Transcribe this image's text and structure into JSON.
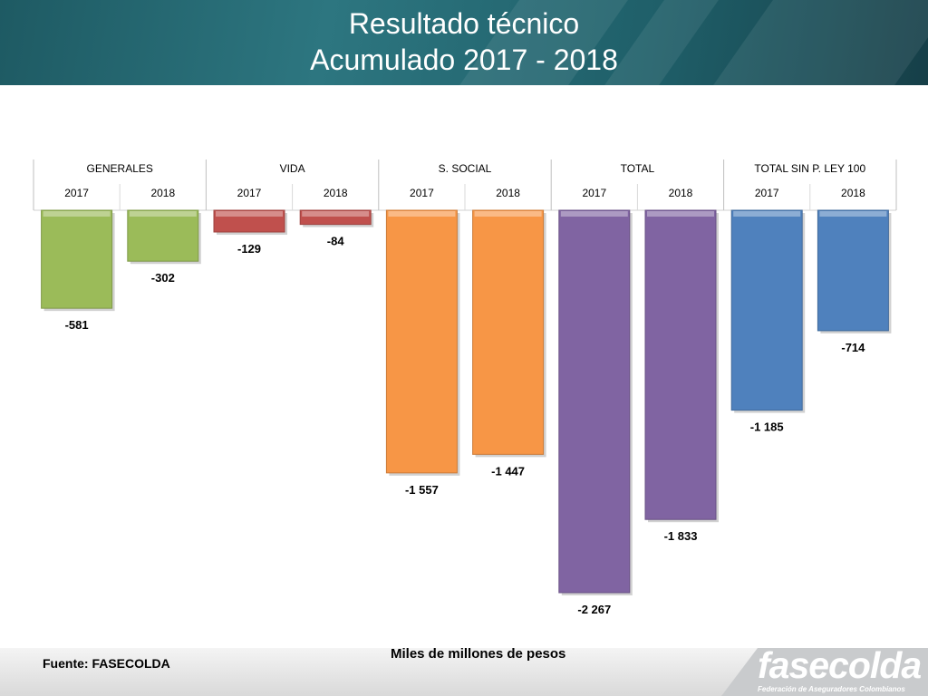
{
  "slide": {
    "title_line1": "Resultado técnico",
    "title_line2": "Acumulado  2017 - 2018",
    "source": "Fuente: FASECOLDA",
    "units": "Miles de millones de pesos",
    "logo_text": "fasecolda",
    "logo_subtitle": "Federación de Aseguradores Colombianos"
  },
  "chart_data": {
    "type": "bar",
    "title": "",
    "xlabel": "",
    "ylabel": "Miles de millones de pesos",
    "ylim": [
      -2267,
      0
    ],
    "groups": [
      {
        "name": "GENERALES",
        "color": "#9bbb59",
        "bars": [
          {
            "year": "2017",
            "value": -581,
            "label": "-581"
          },
          {
            "year": "2018",
            "value": -302,
            "label": "-302"
          }
        ]
      },
      {
        "name": "VIDA",
        "color": "#c0504d",
        "bars": [
          {
            "year": "2017",
            "value": -129,
            "label": "-129"
          },
          {
            "year": "2018",
            "value": -84,
            "label": "-84"
          }
        ]
      },
      {
        "name": "S. SOCIAL",
        "color": "#f79646",
        "bars": [
          {
            "year": "2017",
            "value": -1557,
            "label": "-1 557"
          },
          {
            "year": "2018",
            "value": -1447,
            "label": "-1 447"
          }
        ]
      },
      {
        "name": "TOTAL",
        "color": "#8064a2",
        "bars": [
          {
            "year": "2017",
            "value": -2267,
            "label": "-2 267"
          },
          {
            "year": "2018",
            "value": -1833,
            "label": "-1 833"
          }
        ]
      },
      {
        "name": "TOTAL SIN P. LEY 100",
        "color": "#4f81bd",
        "bars": [
          {
            "year": "2017",
            "value": -1185,
            "label": "-1 185"
          },
          {
            "year": "2018",
            "value": -714,
            "label": "-714"
          }
        ]
      }
    ]
  }
}
